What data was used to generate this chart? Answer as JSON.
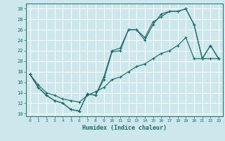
{
  "xlabel": "Humidex (Indice chaleur)",
  "xlim": [
    -0.5,
    23.5
  ],
  "ylim": [
    9.5,
    31.0
  ],
  "xticks": [
    0,
    1,
    2,
    3,
    4,
    5,
    6,
    7,
    8,
    9,
    10,
    11,
    12,
    13,
    14,
    15,
    16,
    17,
    18,
    19,
    20,
    21,
    22,
    23
  ],
  "yticks": [
    10,
    12,
    14,
    16,
    18,
    20,
    22,
    24,
    26,
    28,
    30
  ],
  "bg_color": "#cde8ec",
  "line_color": "#1e6b6b",
  "grid_color": "#ffffff",
  "line1_x": [
    0,
    1,
    2,
    3,
    4,
    5,
    6,
    7,
    8,
    9,
    10,
    11,
    12,
    13,
    14,
    15,
    16,
    17,
    18,
    19,
    20,
    21,
    22,
    23
  ],
  "line1_y": [
    17.5,
    15.0,
    13.5,
    12.5,
    12.0,
    10.8,
    10.5,
    13.8,
    13.5,
    17.0,
    22.0,
    22.5,
    26.0,
    26.0,
    24.0,
    27.0,
    29.0,
    29.5,
    29.5,
    30.0,
    27.0,
    20.5,
    23.0,
    20.5
  ],
  "line2_x": [
    0,
    1,
    2,
    3,
    4,
    5,
    6,
    7,
    8,
    9,
    10,
    11,
    12,
    13,
    14,
    15,
    16,
    17,
    18,
    19,
    20,
    21,
    22,
    23
  ],
  "line2_y": [
    17.5,
    15.0,
    13.5,
    12.5,
    12.0,
    10.8,
    10.5,
    13.8,
    13.5,
    16.5,
    21.8,
    22.0,
    26.0,
    26.0,
    24.5,
    27.5,
    28.5,
    29.5,
    29.5,
    30.0,
    27.0,
    20.5,
    23.0,
    20.5
  ],
  "line3_x": [
    0,
    1,
    2,
    3,
    4,
    5,
    6,
    7,
    8,
    9,
    10,
    11,
    12,
    13,
    14,
    15,
    16,
    17,
    18,
    19,
    20,
    21,
    22,
    23
  ],
  "line3_y": [
    17.5,
    15.5,
    14.0,
    13.5,
    12.8,
    12.5,
    12.2,
    13.5,
    14.2,
    15.0,
    16.5,
    17.0,
    18.0,
    19.0,
    19.5,
    20.5,
    21.5,
    22.0,
    23.0,
    24.5,
    20.5,
    20.5,
    20.5,
    20.5
  ]
}
